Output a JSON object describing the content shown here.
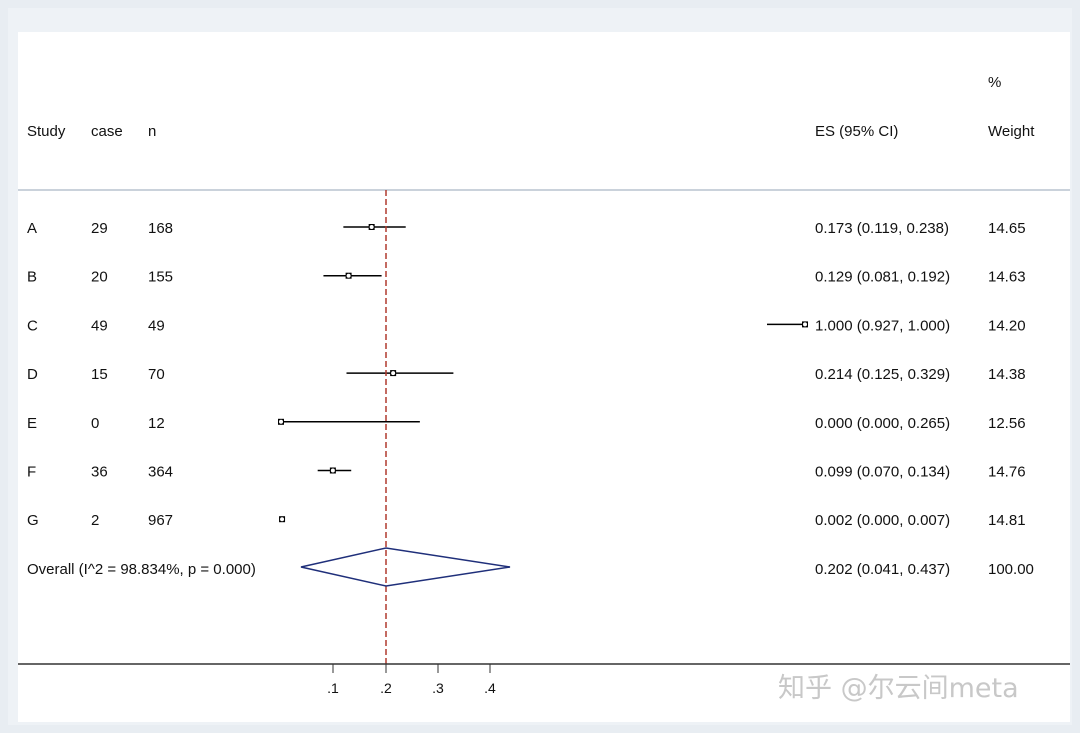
{
  "chart_data": {
    "type": "forest",
    "headers": {
      "study": "Study",
      "case": "case",
      "n": "n",
      "es": "ES (95% CI)",
      "weight_top": "%",
      "weight": "Weight"
    },
    "studies": [
      {
        "study": "A",
        "case": "29",
        "n": "168",
        "es": 0.173,
        "lo": 0.119,
        "hi": 0.238,
        "es_text": "0.173 (0.119, 0.238)",
        "weight": "14.65"
      },
      {
        "study": "B",
        "case": "20",
        "n": "155",
        "es": 0.129,
        "lo": 0.081,
        "hi": 0.192,
        "es_text": "0.129 (0.081, 0.192)",
        "weight": "14.63"
      },
      {
        "study": "C",
        "case": "49",
        "n": "49",
        "es": 1.0,
        "lo": 0.927,
        "hi": 1.0,
        "es_text": "1.000 (0.927, 1.000)",
        "weight": "14.20"
      },
      {
        "study": "D",
        "case": "15",
        "n": "70",
        "es": 0.214,
        "lo": 0.125,
        "hi": 0.329,
        "es_text": "0.214 (0.125, 0.329)",
        "weight": "14.38"
      },
      {
        "study": "E",
        "case": "0",
        "n": "12",
        "es": 0.0,
        "lo": 0.0,
        "hi": 0.265,
        "es_text": "0.000 (0.000, 0.265)",
        "weight": "12.56"
      },
      {
        "study": "F",
        "case": "36",
        "n": "364",
        "es": 0.099,
        "lo": 0.07,
        "hi": 0.134,
        "es_text": "0.099 (0.070, 0.134)",
        "weight": "14.76"
      },
      {
        "study": "G",
        "case": "2",
        "n": "967",
        "es": 0.002,
        "lo": 0.0,
        "hi": 0.007,
        "es_text": "0.002 (0.000, 0.007)",
        "weight": "14.81"
      }
    ],
    "overall": {
      "label": "Overall  (I^2 = 98.834%, p = 0.000)",
      "es": 0.202,
      "lo": 0.041,
      "hi": 0.437,
      "es_text": "0.202 (0.041, 0.437)",
      "weight": "100.00"
    },
    "x_ticks": [
      {
        "value": 0.1,
        "label": ".1"
      },
      {
        "value": 0.2,
        "label": ".2"
      },
      {
        "value": 0.3,
        "label": ".3"
      },
      {
        "value": 0.4,
        "label": ".4"
      }
    ],
    "reference_line": 0.202,
    "colors": {
      "ci_line": "#000000",
      "diamond": "#1f2f7a",
      "reference": "#b03a2e",
      "divider": "#b9c4cf"
    }
  },
  "watermark": "知乎 @尔云间meta"
}
